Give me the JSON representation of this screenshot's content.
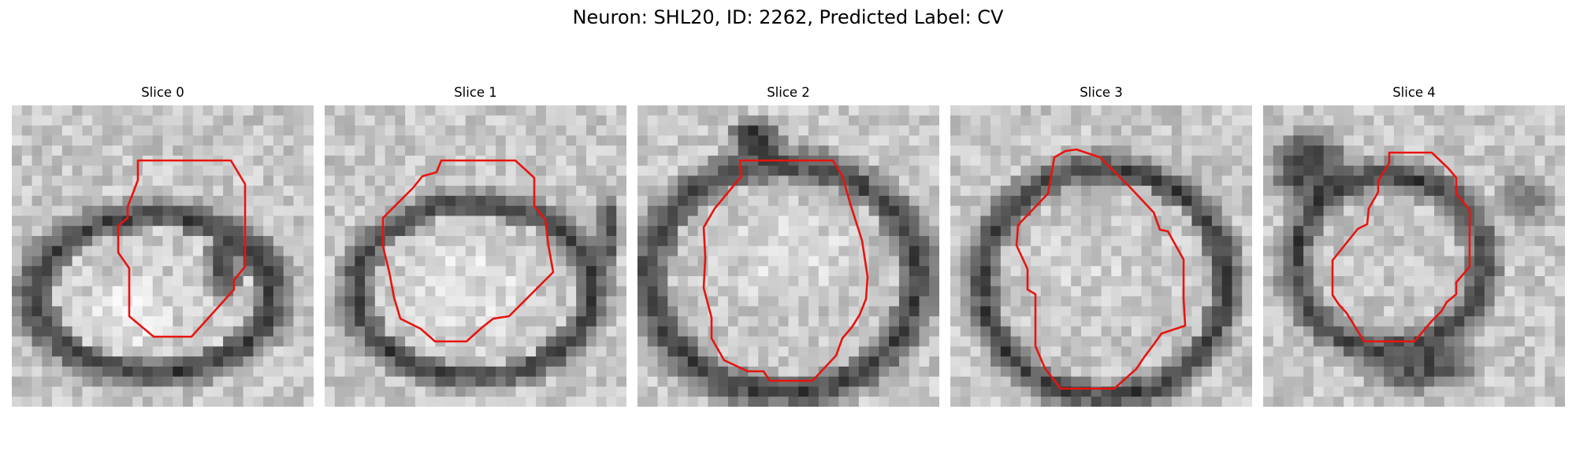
{
  "figure": {
    "title": "Neuron: SHL20, ID: 2262, Predicted Label: CV"
  },
  "overlay_color": "#e8140f",
  "panels": [
    {
      "title": "Slice 0"
    },
    {
      "title": "Slice 1"
    },
    {
      "title": "Slice 2"
    },
    {
      "title": "Slice 3"
    },
    {
      "title": "Slice 4"
    }
  ]
}
